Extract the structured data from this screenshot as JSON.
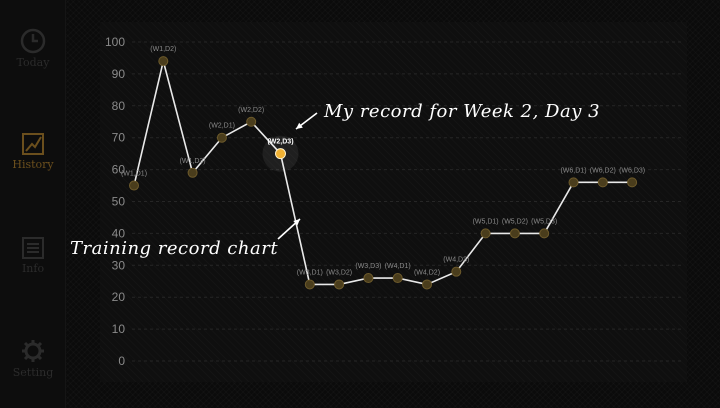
{
  "nav": [
    {
      "label": "Today",
      "icon": "clock-icon",
      "active": false
    },
    {
      "label": "History",
      "icon": "chart-icon",
      "active": true
    },
    {
      "label": "Info",
      "icon": "document-icon",
      "active": false
    },
    {
      "label": "Setting",
      "icon": "gear-icon",
      "active": false
    }
  ],
  "annotations": {
    "record": "My record for Week 2, Day 3",
    "chart": "Training record chart"
  },
  "colors": {
    "line": "#e9e9e9",
    "point": "#4a3d1c",
    "highlight": "#f2b233",
    "axis_text": "#8a8a8a",
    "point_label": "#8a8a8a"
  },
  "chart_data": {
    "type": "line",
    "categories": [
      "(W1,D1)",
      "(W1,D2)",
      "(W1,D3)",
      "(W2,D1)",
      "(W2,D2)",
      "(W2,D3)",
      "(W3,D1)",
      "(W3,D2)",
      "(W3,D3)",
      "(W4,D1)",
      "(W4,D2)",
      "(W4,D3)",
      "(W5,D1)",
      "(W5,D2)",
      "(W5,D3)",
      "(W6,D1)",
      "(W6,D2)",
      "(W6,D3)"
    ],
    "values": [
      55,
      94,
      59,
      70,
      75,
      65,
      24,
      24,
      26,
      26,
      24,
      28,
      40,
      40,
      40,
      56,
      56,
      56
    ],
    "highlight": "(W2,D3)",
    "ylim": [
      0,
      100
    ],
    "yticks": [
      0,
      10,
      20,
      30,
      40,
      50,
      60,
      70,
      80,
      90,
      100
    ],
    "grid": true
  }
}
